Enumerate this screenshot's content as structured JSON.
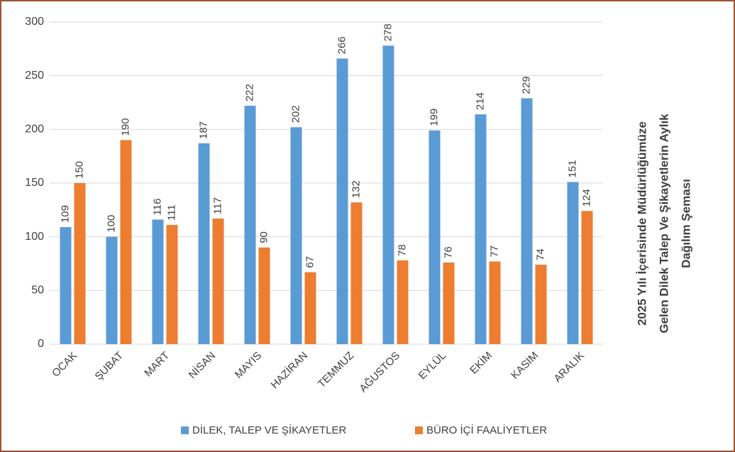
{
  "chart_data": {
    "type": "bar",
    "title": [
      "2025 Yılı İçerisinde Müdürlüğümüze",
      "Gelen Dilek Talep Ve  Şikayetlerin  Aylık",
      "Dağılım Şeması"
    ],
    "categories": [
      "OCAK",
      "ŞUBAT",
      "MART",
      "NİSAN",
      "MAYIS",
      "HAZİRAN",
      "TEMMUZ",
      "AĞUSTOS",
      "EYLÜL",
      "EKİM",
      "KASIM",
      "ARALIK"
    ],
    "series": [
      {
        "name": "DİLEK, TALEP VE ŞİKAYETLER",
        "color": "#5b9bd5",
        "values": [
          109,
          100,
          116,
          187,
          222,
          202,
          266,
          278,
          199,
          214,
          229,
          151
        ]
      },
      {
        "name": "BÜRO İÇİ FAALİYETLER",
        "color": "#ed7d31",
        "values": [
          150,
          190,
          111,
          117,
          90,
          67,
          132,
          78,
          76,
          77,
          74,
          124
        ]
      }
    ],
    "ylim": [
      0,
      300
    ],
    "yticks": [
      0,
      50,
      100,
      150,
      200,
      250,
      300
    ],
    "grid": true,
    "legend": "bottom"
  }
}
